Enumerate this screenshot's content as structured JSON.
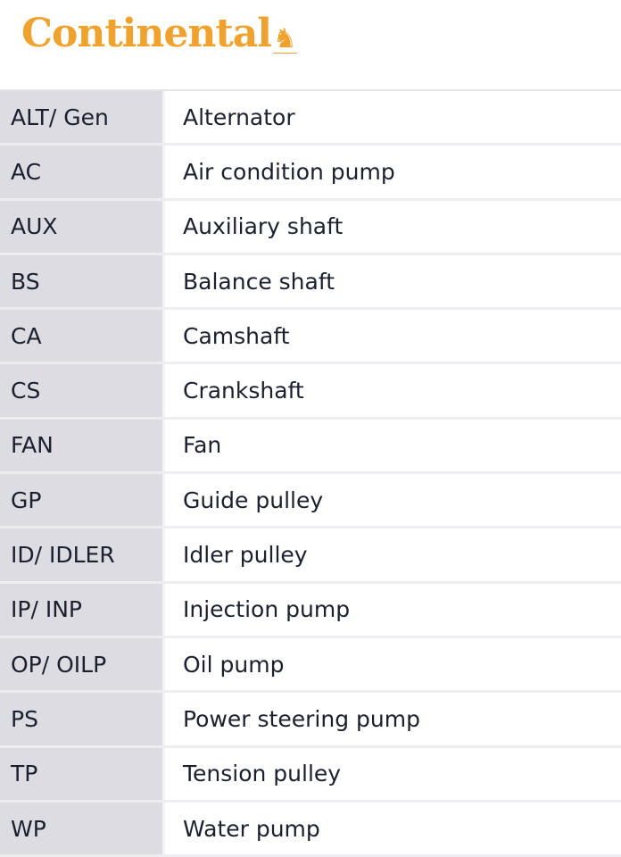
{
  "brand": {
    "logo_text": "Continental",
    "color": "#f0a22e"
  },
  "rows": [
    {
      "abbr": "ALT/ Gen",
      "desc": "Alternator"
    },
    {
      "abbr": "AC",
      "desc": "Air condition pump"
    },
    {
      "abbr": "AUX",
      "desc": "Auxiliary shaft"
    },
    {
      "abbr": "BS",
      "desc": "Balance shaft"
    },
    {
      "abbr": "CA",
      "desc": "Camshaft"
    },
    {
      "abbr": "CS",
      "desc": "Crankshaft"
    },
    {
      "abbr": "FAN",
      "desc": "Fan"
    },
    {
      "abbr": "GP",
      "desc": "Guide pulley"
    },
    {
      "abbr": "ID/ IDLER",
      "desc": "Idler pulley"
    },
    {
      "abbr": "IP/ INP",
      "desc": "Injection pump"
    },
    {
      "abbr": "OP/ OILP",
      "desc": "Oil pump"
    },
    {
      "abbr": "PS",
      "desc": "Power steering pump"
    },
    {
      "abbr": "TP",
      "desc": "Tension pulley"
    },
    {
      "abbr": "WP",
      "desc": "Water pump"
    }
  ]
}
